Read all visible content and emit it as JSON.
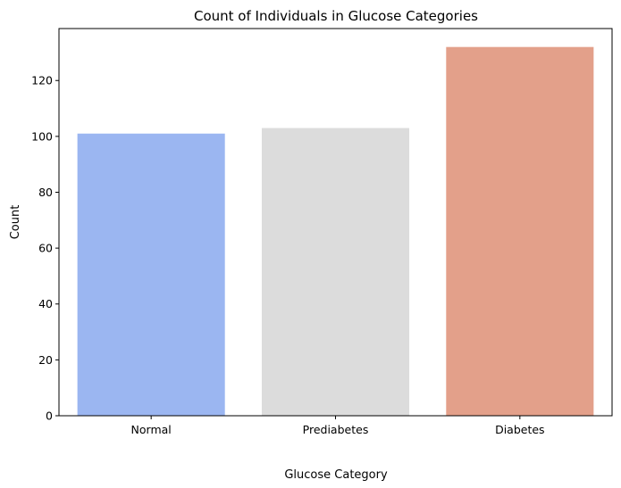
{
  "chart_data": {
    "type": "bar",
    "title": "Count of Individuals in Glucose Categories",
    "xlabel": "Glucose Category",
    "ylabel": "Count",
    "categories": [
      "Normal",
      "Prediabetes",
      "Diabetes"
    ],
    "values": [
      101,
      103,
      132
    ],
    "colors": [
      "#9bb6f1",
      "#dcdcdc",
      "#e3a08a"
    ],
    "ylim": [
      0,
      138.6
    ],
    "yticks": [
      0,
      20,
      40,
      60,
      80,
      100,
      120
    ],
    "grid": false,
    "legend": "none"
  }
}
